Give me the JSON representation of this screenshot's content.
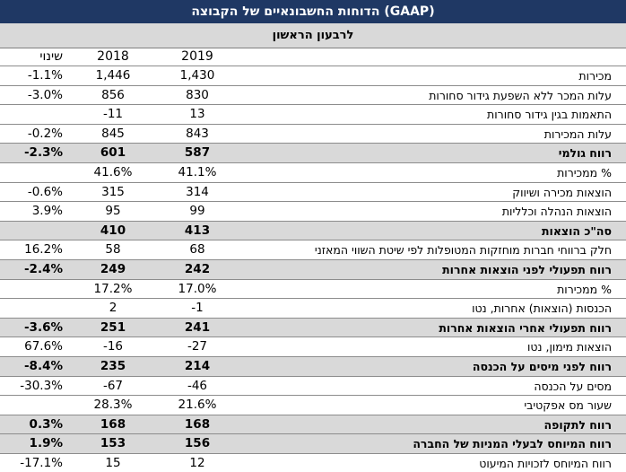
{
  "title": "הדוחות החשבונאיים של הקבוצה (GAAP)",
  "subtitle": "לרבעון הראשון",
  "columns": {
    "y2019": "2019",
    "y2018": "2018",
    "change": "שינוי"
  },
  "rows": [
    {
      "label": "מכירות",
      "y2019": "1,430",
      "y2018": "1,446",
      "change": "-1.1%",
      "bold": false
    },
    {
      "label": "עלות המכר ללא השפעת גידור סחורות",
      "y2019": "830",
      "y2018": "856",
      "change": "-3.0%",
      "bold": false
    },
    {
      "label": "התאמות בגין גידור סחורות",
      "y2019": "13",
      "y2018": "-11",
      "change": "",
      "bold": false
    },
    {
      "label": "עלות המכירות",
      "y2019": "843",
      "y2018": "845",
      "change": "-0.2%",
      "bold": false
    },
    {
      "label": "רווח גולמי",
      "y2019": "587",
      "y2018": "601",
      "change": "-2.3%",
      "bold": true
    },
    {
      "label": "% ממכירות",
      "y2019": "41.1%",
      "y2018": "41.6%",
      "change": "",
      "bold": false
    },
    {
      "label": "הוצאות מכירה ושיווק",
      "y2019": "314",
      "y2018": "315",
      "change": "-0.6%",
      "bold": false
    },
    {
      "label": "הוצאות הנהלה וכלליות",
      "y2019": "99",
      "y2018": "95",
      "change": "3.9%",
      "bold": false
    },
    {
      "label": "סה\"כ הוצאות",
      "y2019": "413",
      "y2018": "410",
      "change": "",
      "bold": true
    },
    {
      "label": "חלק ברווחי חברות מוחזקות המטופלות לפי שיטת השווי המאזני",
      "y2019": "68",
      "y2018": "58",
      "change": "16.2%",
      "bold": false
    },
    {
      "label": "רווח תפעולי לפני הוצאות אחרות",
      "y2019": "242",
      "y2018": "249",
      "change": "-2.4%",
      "bold": true
    },
    {
      "label": "% ממכירות",
      "y2019": "17.0%",
      "y2018": "17.2%",
      "change": "",
      "bold": false
    },
    {
      "label": "הכנסות (הוצאות) אחרות, נטו",
      "y2019": "-1",
      "y2018": "2",
      "change": "",
      "bold": false
    },
    {
      "label": "רווח תפעולי אחרי הוצאות אחרות",
      "y2019": "241",
      "y2018": "251",
      "change": "-3.6%",
      "bold": true
    },
    {
      "label": "הוצאות מימון, נטו",
      "y2019": "-27",
      "y2018": "-16",
      "change": "67.6%",
      "bold": false
    },
    {
      "label": "רווח לפני מיסים על הכנסה",
      "y2019": "214",
      "y2018": "235",
      "change": "-8.4%",
      "bold": true
    },
    {
      "label": "מסים על הכנסה",
      "y2019": "-46",
      "y2018": "-67",
      "change": "-30.3%",
      "bold": false
    },
    {
      "label": "שעור מס אפקטיבי",
      "y2019": "21.6%",
      "y2018": "28.3%",
      "change": "",
      "bold": false
    },
    {
      "label": "רווח לתקופה",
      "y2019": "168",
      "y2018": "168",
      "change": "0.3%",
      "bold": true
    },
    {
      "label": "רווח המיוחס לבעלי המניות של החברה",
      "y2019": "156",
      "y2018": "153",
      "change": "1.9%",
      "bold": true
    },
    {
      "label": "רווח המיוחס לזכויות המיעוט",
      "y2019": "12",
      "y2018": "15",
      "change": "-17.1%",
      "bold": false
    }
  ]
}
